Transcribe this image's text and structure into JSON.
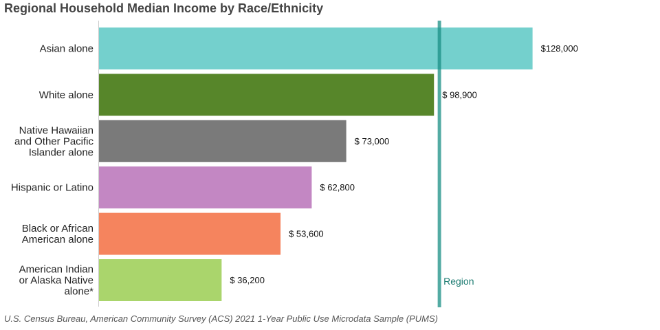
{
  "title": "Regional Household Median Income by Race/Ethnicity",
  "source": "U.S. Census Bureau, American Community Survey (ACS) 2021 1-Year Public Use Microdata Sample (PUMS)",
  "chart_data": {
    "type": "bar",
    "orientation": "horizontal",
    "title": "Regional Household Median Income by Race/Ethnicity",
    "xlabel": "",
    "ylabel": "",
    "xlim": [
      0,
      150000
    ],
    "grid": false,
    "categories": [
      [
        "Asian alone"
      ],
      [
        "White alone"
      ],
      [
        "Native Hawaiian",
        "and Other Pacific",
        "Islander alone"
      ],
      [
        "Hispanic or Latino"
      ],
      [
        "Black or African",
        "American alone"
      ],
      [
        "American Indian",
        "or Alaska Native",
        "alone*"
      ]
    ],
    "values": [
      128000,
      98900,
      73000,
      62800,
      53600,
      36200
    ],
    "value_labels": [
      "$128,000",
      "$ 98,900",
      "$ 73,000",
      "$ 62,800",
      "$ 53,600",
      "$ 36,200"
    ],
    "colors": [
      "#74d0cd",
      "#57862a",
      "#7a7a7a",
      "#c387c3",
      "#f5845e",
      "#aad56c"
    ],
    "reference_line": {
      "label": "Region",
      "value": 100500,
      "color": "#1a8f84"
    }
  }
}
